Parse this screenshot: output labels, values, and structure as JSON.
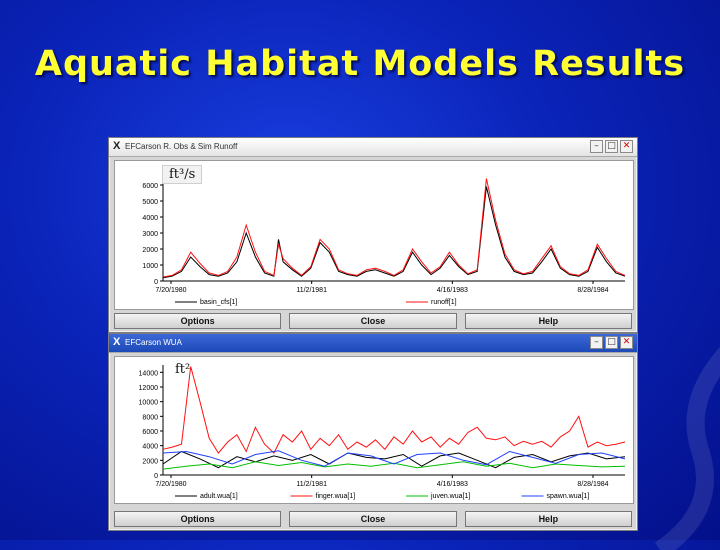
{
  "slide": {
    "title": "Aquatic Habitat Models Results"
  },
  "colors": {
    "title": "#ffff33",
    "background": "#0a23b8",
    "red": "#ff1010",
    "black": "#000000",
    "green": "#00c000",
    "blue": "#2040ff"
  },
  "window1": {
    "title": "EFCarson R. Obs & Sim Runoff",
    "unit_label": "ft³/s",
    "buttons": {
      "options": "Options",
      "close": "Close",
      "help": "Help"
    },
    "chart_data": {
      "type": "line",
      "ylim": [
        0,
        7000
      ],
      "y_ticks": [
        "0",
        "1000",
        "2000",
        "3000",
        "4000",
        "5000",
        "6000"
      ],
      "x_ticks": [
        "7/20/1980",
        "11/2/1981",
        "4/16/1983",
        "8/28/1984"
      ],
      "series": [
        {
          "name": "basin_cfs[1]",
          "color": "#000000",
          "x": [
            0,
            2,
            4,
            6,
            8,
            10,
            12,
            14,
            16,
            18,
            20,
            22,
            24,
            25,
            26,
            28,
            30,
            32,
            34,
            36,
            38,
            40,
            42,
            44,
            46,
            48,
            50,
            52,
            54,
            56,
            58,
            60,
            62,
            64,
            66,
            68,
            70,
            72,
            74,
            76,
            78,
            80,
            82,
            84,
            86,
            88,
            90,
            92,
            94,
            96,
            98,
            100
          ],
          "values": [
            200,
            300,
            600,
            1500,
            900,
            400,
            300,
            500,
            1200,
            3000,
            1500,
            500,
            300,
            2600,
            1200,
            700,
            300,
            800,
            2400,
            1800,
            600,
            400,
            300,
            600,
            700,
            500,
            300,
            600,
            1800,
            1000,
            400,
            800,
            1600,
            900,
            400,
            600,
            5900,
            3500,
            1500,
            600,
            400,
            500,
            1200,
            2000,
            800,
            400,
            300,
            600,
            2100,
            1200,
            500,
            300
          ]
        },
        {
          "name": "runoff[1]",
          "color": "#ff1010",
          "x": [
            0,
            2,
            4,
            6,
            8,
            10,
            12,
            14,
            16,
            18,
            20,
            22,
            24,
            25,
            26,
            28,
            30,
            32,
            34,
            36,
            38,
            40,
            42,
            44,
            46,
            48,
            50,
            52,
            54,
            56,
            58,
            60,
            62,
            64,
            66,
            68,
            70,
            72,
            74,
            76,
            78,
            80,
            82,
            84,
            86,
            88,
            90,
            92,
            94,
            96,
            98,
            100
          ],
          "values": [
            250,
            350,
            700,
            1800,
            1100,
            500,
            350,
            600,
            1500,
            3500,
            1800,
            600,
            350,
            2300,
            1400,
            800,
            350,
            900,
            2600,
            2000,
            700,
            450,
            350,
            700,
            800,
            600,
            350,
            700,
            2000,
            1200,
            500,
            900,
            1800,
            1000,
            450,
            700,
            6400,
            3800,
            1700,
            700,
            450,
            600,
            1400,
            2200,
            900,
            450,
            350,
            700,
            2300,
            1400,
            600,
            350
          ]
        }
      ]
    }
  },
  "window2": {
    "title": "EFCarson WUA",
    "unit_label": "ft²",
    "buttons": {
      "options": "Options",
      "close": "Close",
      "help": "Help"
    },
    "chart_data": {
      "type": "line",
      "ylim": [
        0,
        15000
      ],
      "y_ticks": [
        "0",
        "2000",
        "4000",
        "6000",
        "8000",
        "10000",
        "12000",
        "14000"
      ],
      "x_ticks": [
        "7/20/1980",
        "11/2/1981",
        "4/16/1983",
        "8/28/1984"
      ],
      "series": [
        {
          "name": "adult.wua[1]",
          "color": "#000000",
          "x": [
            0,
            4,
            8,
            12,
            16,
            20,
            24,
            28,
            32,
            36,
            40,
            44,
            48,
            52,
            56,
            60,
            64,
            68,
            72,
            76,
            80,
            84,
            88,
            92,
            96,
            100
          ],
          "values": [
            1500,
            3200,
            2200,
            1000,
            2500,
            1800,
            2600,
            2000,
            2800,
            1500,
            3000,
            2400,
            2200,
            2800,
            1200,
            2600,
            3000,
            2000,
            1000,
            2400,
            2800,
            1800,
            2600,
            3000,
            2200,
            2500
          ]
        },
        {
          "name": "finger.wua[1]",
          "color": "#ff1010",
          "x": [
            0,
            2,
            4,
            6,
            8,
            10,
            12,
            14,
            16,
            18,
            20,
            22,
            24,
            26,
            28,
            30,
            32,
            34,
            36,
            38,
            40,
            42,
            44,
            46,
            48,
            50,
            52,
            54,
            56,
            58,
            60,
            62,
            64,
            66,
            68,
            70,
            72,
            74,
            76,
            78,
            80,
            82,
            84,
            86,
            88,
            90,
            92,
            94,
            96,
            98,
            100
          ],
          "values": [
            3500,
            3800,
            4200,
            14800,
            10000,
            5000,
            3000,
            4500,
            5500,
            3200,
            6500,
            4200,
            3000,
            5500,
            4500,
            6000,
            3500,
            5000,
            4000,
            5500,
            3500,
            4500,
            3800,
            4800,
            3500,
            5200,
            4200,
            6000,
            4500,
            5200,
            3800,
            5000,
            4200,
            5800,
            6500,
            5000,
            4800,
            5200,
            4000,
            4600,
            4200,
            4600,
            3800,
            5200,
            6000,
            8000,
            3800,
            4500,
            4000,
            4200,
            4500
          ]
        },
        {
          "name": "juven.wua[1]",
          "color": "#00c000",
          "x": [
            0,
            5,
            10,
            15,
            20,
            25,
            30,
            35,
            40,
            45,
            50,
            55,
            60,
            65,
            70,
            75,
            80,
            85,
            90,
            95,
            100
          ],
          "values": [
            800,
            1200,
            1500,
            1000,
            1800,
            1300,
            1700,
            1100,
            1500,
            1200,
            1600,
            1000,
            1400,
            1800,
            1200,
            1600,
            1000,
            1500,
            1300,
            1100,
            1200
          ]
        },
        {
          "name": "spawn.wua[1]",
          "color": "#2040ff",
          "x": [
            0,
            5,
            10,
            15,
            20,
            25,
            30,
            35,
            40,
            45,
            50,
            55,
            60,
            65,
            70,
            75,
            80,
            85,
            90,
            95,
            100
          ],
          "values": [
            3000,
            3200,
            2500,
            1500,
            2800,
            3300,
            2000,
            1200,
            3000,
            2600,
            1500,
            2800,
            3000,
            2000,
            1400,
            3200,
            2400,
            1600,
            2800,
            3000,
            2200
          ]
        }
      ]
    }
  }
}
